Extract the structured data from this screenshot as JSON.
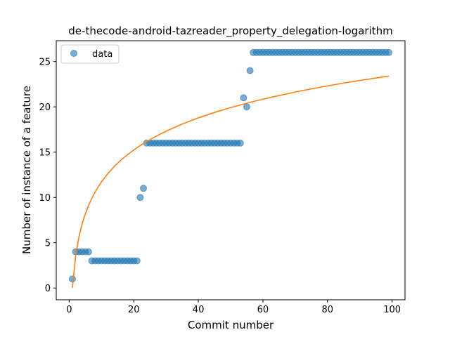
{
  "chart_data": {
    "type": "scatter",
    "title": "de-thecode-android-tazreader_property_delegation-logarithm",
    "xlabel": "Commit number",
    "ylabel": "Number of instance of a feature",
    "xlim": [
      -4,
      104
    ],
    "ylim": [
      -1.3,
      27.3
    ],
    "xticks": [
      0,
      20,
      40,
      60,
      80,
      100
    ],
    "yticks": [
      0,
      5,
      10,
      15,
      20,
      25
    ],
    "legend": {
      "position": "top-left",
      "entries": [
        "data"
      ]
    },
    "grid": false,
    "colors": {
      "data": "#1f77b4",
      "fit": "#ff7f0e"
    },
    "series": [
      {
        "name": "data",
        "kind": "scatter",
        "x": [
          1,
          2,
          3,
          4,
          5,
          6,
          7,
          8,
          9,
          10,
          11,
          12,
          13,
          14,
          15,
          16,
          17,
          18,
          19,
          20,
          21,
          22,
          23,
          24,
          25,
          26,
          27,
          28,
          29,
          30,
          31,
          32,
          33,
          34,
          35,
          36,
          37,
          38,
          39,
          40,
          41,
          42,
          43,
          44,
          45,
          46,
          47,
          48,
          49,
          50,
          51,
          52,
          53,
          54,
          55,
          56,
          57,
          58,
          59,
          60,
          61,
          62,
          63,
          64,
          65,
          66,
          67,
          68,
          69,
          70,
          71,
          72,
          73,
          74,
          75,
          76,
          77,
          78,
          79,
          80,
          81,
          82,
          83,
          84,
          85,
          86,
          87,
          88,
          89,
          90,
          91,
          92,
          93,
          94,
          95,
          96,
          97,
          98,
          99
        ],
        "y": [
          1,
          4,
          4,
          4,
          4,
          4,
          3,
          3,
          3,
          3,
          3,
          3,
          3,
          3,
          3,
          3,
          3,
          3,
          3,
          3,
          3,
          10,
          11,
          16,
          16,
          16,
          16,
          16,
          16,
          16,
          16,
          16,
          16,
          16,
          16,
          16,
          16,
          16,
          16,
          16,
          16,
          16,
          16,
          16,
          16,
          16,
          16,
          16,
          16,
          16,
          16,
          16,
          16,
          21,
          20,
          24,
          26,
          26,
          26,
          26,
          26,
          26,
          26,
          26,
          26,
          26,
          26,
          26,
          26,
          26,
          26,
          26,
          26,
          26,
          26,
          26,
          26,
          26,
          26,
          26,
          26,
          26,
          26,
          26,
          26,
          26,
          26,
          26,
          26,
          26,
          26,
          26,
          26,
          26,
          26,
          26,
          26,
          26,
          26
        ]
      },
      {
        "kind": "line",
        "x": [
          1,
          2,
          3,
          4,
          5,
          6,
          7,
          8,
          9,
          10,
          12,
          14,
          16,
          18,
          20,
          22,
          24,
          26,
          28,
          30,
          35,
          40,
          45,
          50,
          55,
          60,
          65,
          70,
          75,
          80,
          85,
          90,
          95,
          99
        ],
        "y": [
          0.0,
          3.53,
          5.59,
          7.05,
          8.18,
          9.11,
          9.89,
          10.57,
          11.17,
          11.71,
          12.64,
          13.43,
          14.11,
          14.71,
          15.24,
          15.73,
          16.17,
          16.58,
          16.95,
          17.31,
          18.1,
          18.78,
          19.38,
          19.92,
          20.4,
          20.85,
          21.25,
          21.63,
          21.98,
          22.31,
          22.62,
          22.91,
          23.18,
          23.4
        ]
      }
    ]
  }
}
